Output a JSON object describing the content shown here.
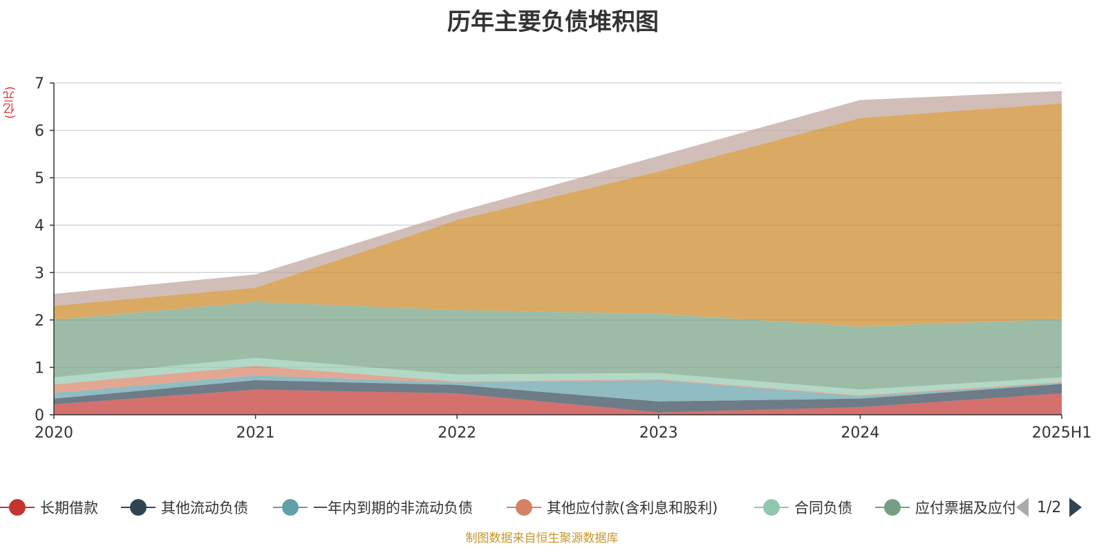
{
  "title": "历年主要负债堆积图",
  "unit_label": "(亿元)",
  "source_note": "制图数据来自恒生聚源数据库",
  "legend_page": "1/2",
  "chart_data": {
    "type": "area",
    "stacked": true,
    "title": "历年主要负债堆积图",
    "ylabel": "(亿元)",
    "categories": [
      "2020",
      "2021",
      "2022",
      "2023",
      "2024",
      "2025H1"
    ],
    "ylim": [
      0,
      7
    ],
    "yticks": [
      0,
      1,
      2,
      3,
      4,
      5,
      6,
      7
    ],
    "grid": true,
    "legend_position": "bottom",
    "series": [
      {
        "name": "长期借款",
        "color": "#c23531",
        "values": [
          0.22,
          0.53,
          0.45,
          0.05,
          0.16,
          0.45
        ]
      },
      {
        "name": "其他流动负债",
        "color": "#2f4554",
        "values": [
          0.12,
          0.2,
          0.18,
          0.23,
          0.18,
          0.2
        ]
      },
      {
        "name": "一年内到期的非流动负债",
        "color": "#61a0a8",
        "values": [
          0.12,
          0.1,
          0.05,
          0.45,
          0.05,
          0.02
        ]
      },
      {
        "name": "其他应付款(含利息和股利)",
        "color": "#d48265",
        "values": [
          0.18,
          0.2,
          0.02,
          0.02,
          0.02,
          0.02
        ]
      },
      {
        "name": "合同负债",
        "color": "#91c7ae",
        "values": [
          0.15,
          0.17,
          0.15,
          0.13,
          0.12,
          0.1
        ]
      },
      {
        "name": "应付票据及应付账款",
        "color": "#749f83",
        "values": [
          1.21,
          1.18,
          1.36,
          1.25,
          1.33,
          1.23
        ]
      },
      {
        "name": "",
        "color": "#ca8622",
        "values": [
          0.3,
          0.3,
          1.9,
          3.0,
          4.4,
          4.55
        ]
      },
      {
        "name": "",
        "color": "#bda29a",
        "values": [
          0.25,
          0.28,
          0.17,
          0.33,
          0.38,
          0.26
        ]
      }
    ]
  }
}
